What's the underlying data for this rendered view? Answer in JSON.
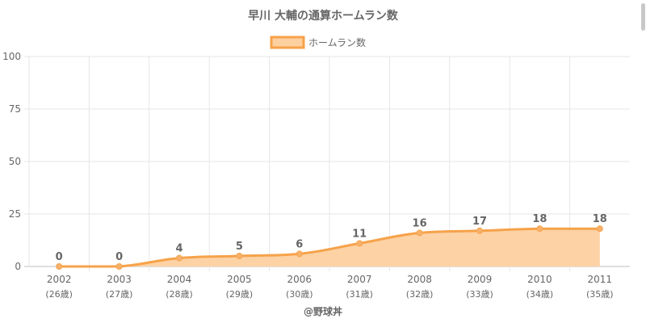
{
  "chart_data": {
    "type": "area",
    "title": "早川 大輔の通算ホームラン数",
    "credit": "@野球丼",
    "legend": {
      "label": "ホームラン数",
      "position": "top"
    },
    "categories": [
      "2002",
      "2003",
      "2004",
      "2005",
      "2006",
      "2007",
      "2008",
      "2009",
      "2010",
      "2011"
    ],
    "ages": [
      "(26歳)",
      "(27歳)",
      "(28歳)",
      "(29歳)",
      "(30歳)",
      "(31歳)",
      "(32歳)",
      "(33歳)",
      "(34歳)",
      "(35歳)"
    ],
    "series": [
      {
        "name": "ホームラン数",
        "values": [
          0,
          0,
          4,
          5,
          6,
          11,
          16,
          17,
          18,
          18
        ]
      }
    ],
    "data_labels": true,
    "ylim": [
      0,
      100
    ],
    "yticks": [
      0,
      25,
      50,
      75,
      100
    ],
    "grid": true,
    "colors": {
      "line": "#f6a24a",
      "fill": "#fdd0a0",
      "point": "#f6b26b",
      "label": "#666666"
    }
  }
}
